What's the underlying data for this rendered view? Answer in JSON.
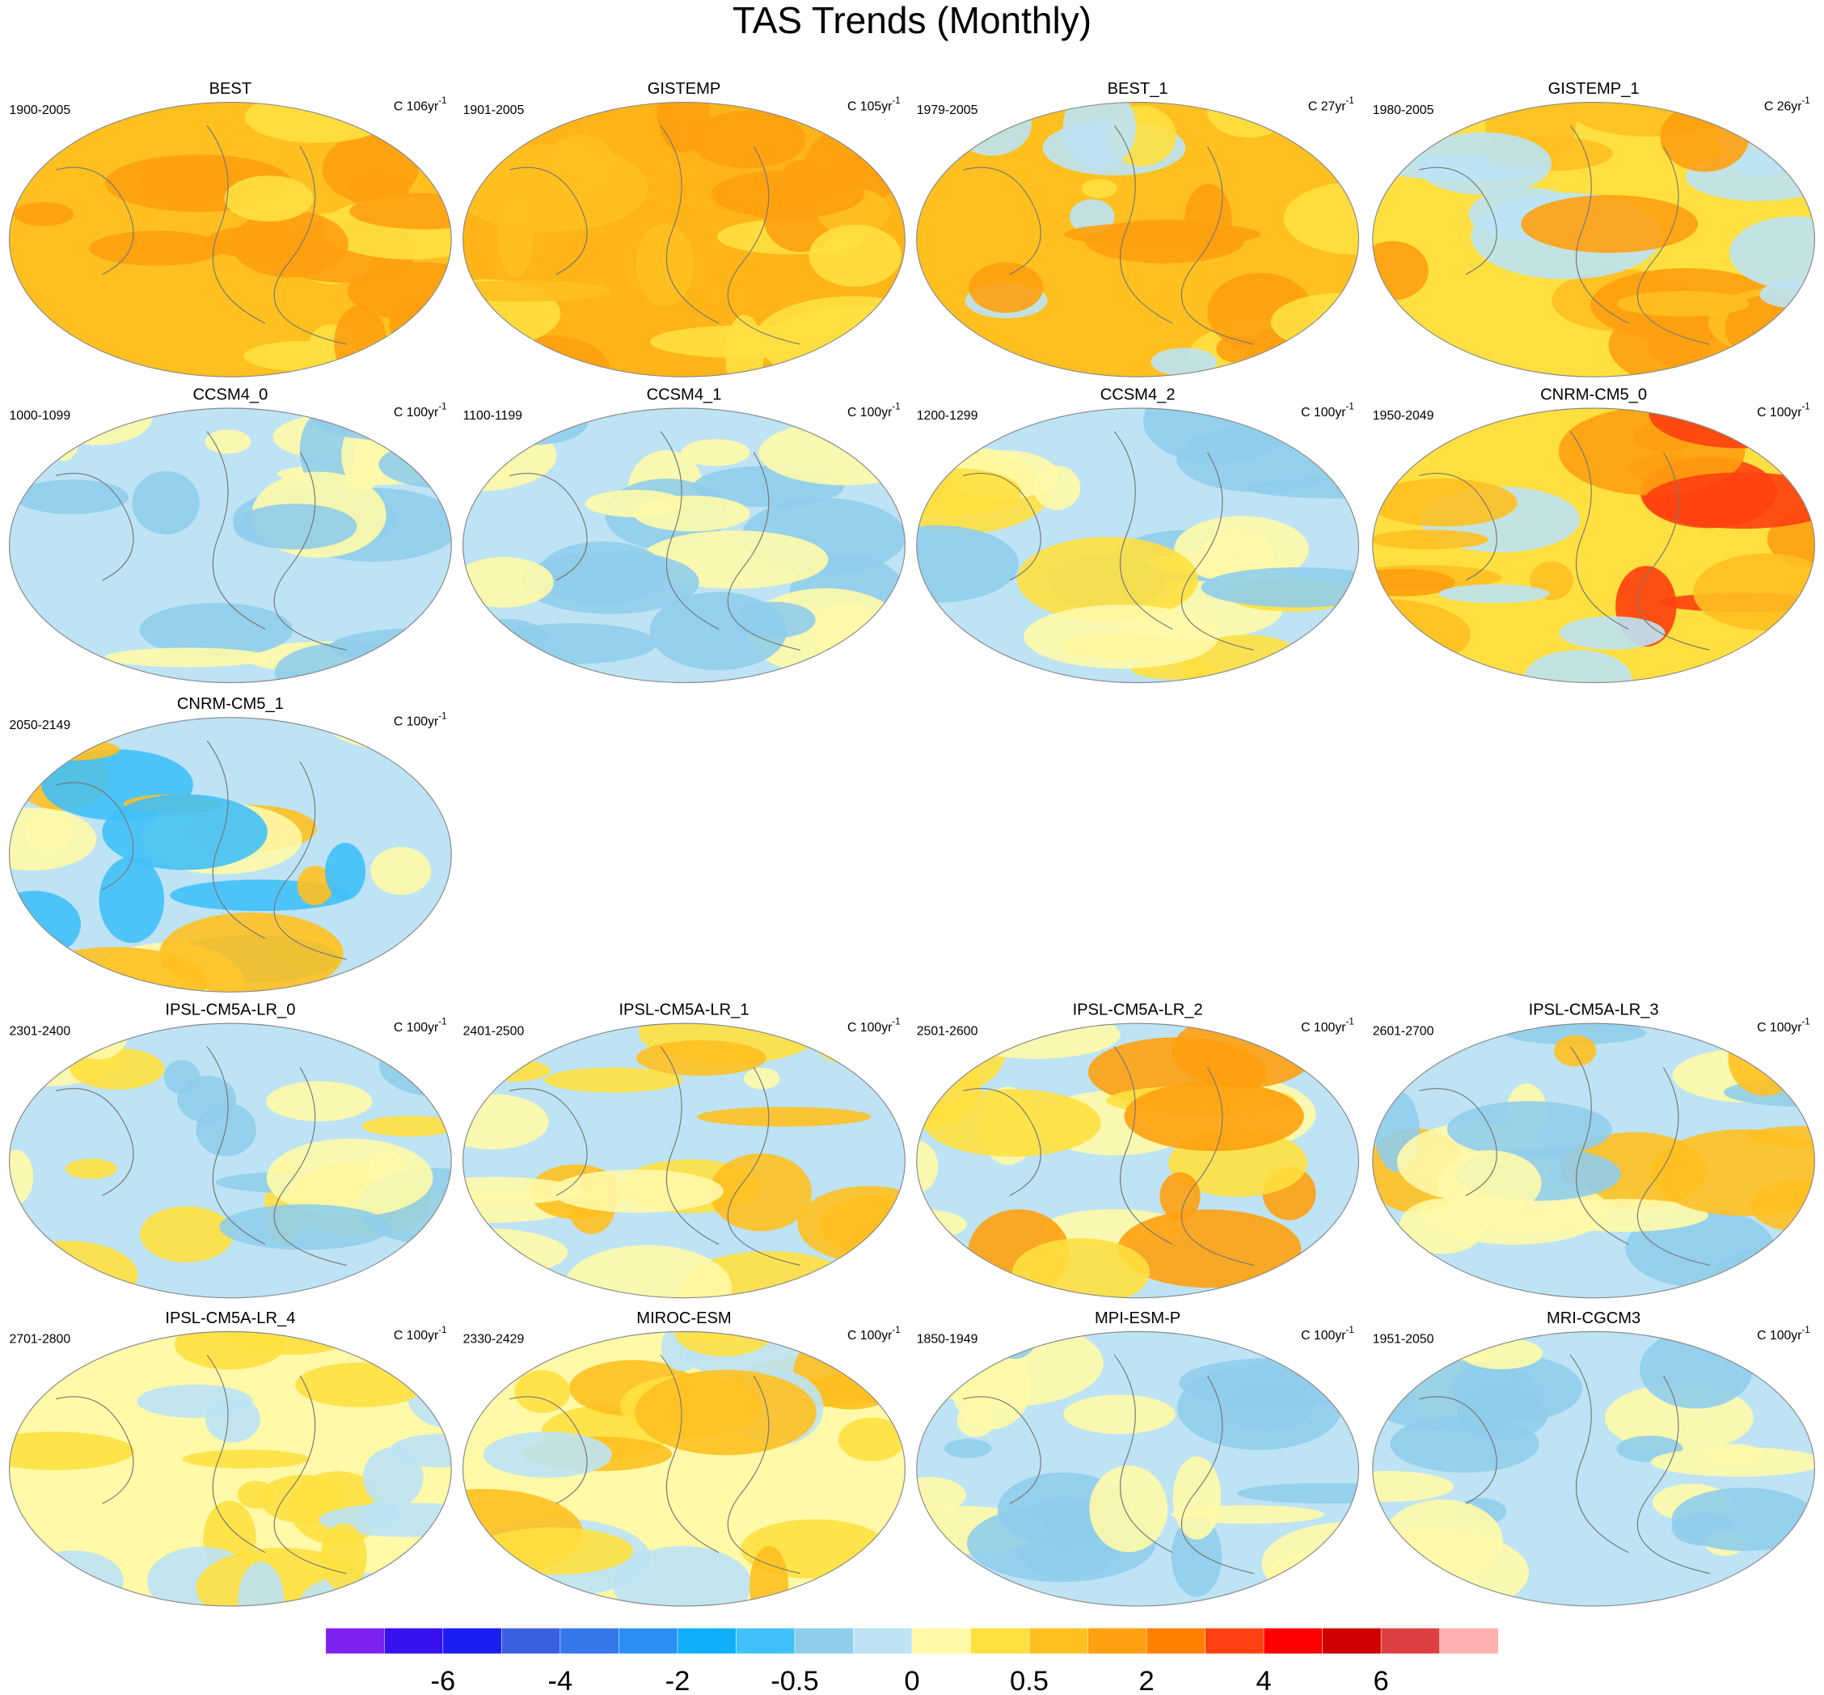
{
  "title": "TAS Trends (Monthly)",
  "panels": [
    {
      "title": "BEST",
      "period": "1900-2005",
      "units": "C 106yr",
      "units_exp": "-1",
      "colors": [
        "#ffc020",
        "#ffa010",
        "#ffe040",
        "#ffa010"
      ]
    },
    {
      "title": "GISTEMP",
      "period": "1901-2005",
      "units": "C 105yr",
      "units_exp": "-1",
      "colors": [
        "#ffb418",
        "#ffa010",
        "#ffc020",
        "#ffe040"
      ]
    },
    {
      "title": "BEST_1",
      "period": "1979-2005",
      "units": "C 27yr",
      "units_exp": "-1",
      "colors": [
        "#ffc020",
        "#ffe040",
        "#bde3f5",
        "#ffa010"
      ]
    },
    {
      "title": "GISTEMP_1",
      "period": "1980-2005",
      "units": "C 26yr",
      "units_exp": "-1",
      "colors": [
        "#ffe040",
        "#bde3f5",
        "#ffc020",
        "#ffa010"
      ]
    },
    {
      "title": "CCSM4_0",
      "period": "1000-1099",
      "units": "C 100yr",
      "units_exp": "-1",
      "colors": [
        "#bde3f5",
        "#fff9a8",
        "#90cdeb"
      ]
    },
    {
      "title": "CCSM4_1",
      "period": "1100-1199",
      "units": "C 100yr",
      "units_exp": "-1",
      "colors": [
        "#bde3f5",
        "#fff9a8",
        "#90cdeb"
      ]
    },
    {
      "title": "CCSM4_2",
      "period": "1200-1299",
      "units": "C 100yr",
      "units_exp": "-1",
      "colors": [
        "#bde3f5",
        "#fff9a8",
        "#90cdeb",
        "#ffe040"
      ]
    },
    {
      "title": "CNRM-CM5_0",
      "period": "1950-2049",
      "units": "C 100yr",
      "units_exp": "-1",
      "colors": [
        "#ffe040",
        "#ffc020",
        "#bde3f5",
        "#ffa010",
        "#ff4010"
      ]
    },
    {
      "title": "CNRM-CM5_1",
      "period": "2050-2149",
      "units": "C 100yr",
      "units_exp": "-1",
      "colors": [
        "#bde3f5",
        "#fff9a8",
        "#ffc020",
        "#40c0f8"
      ]
    },
    {
      "title": "IPSL-CM5A-LR_0",
      "period": "2301-2400",
      "units": "C 100yr",
      "units_exp": "-1",
      "colors": [
        "#bde3f5",
        "#fff9a8",
        "#90cdeb",
        "#ffe040"
      ]
    },
    {
      "title": "IPSL-CM5A-LR_1",
      "period": "2401-2500",
      "units": "C 100yr",
      "units_exp": "-1",
      "colors": [
        "#bde3f5",
        "#fff9a8",
        "#ffe040",
        "#ffc020"
      ]
    },
    {
      "title": "IPSL-CM5A-LR_2",
      "period": "2501-2600",
      "units": "C 100yr",
      "units_exp": "-1",
      "colors": [
        "#bde3f5",
        "#fff9a8",
        "#ffe040",
        "#ffa010"
      ]
    },
    {
      "title": "IPSL-CM5A-LR_3",
      "period": "2601-2700",
      "units": "C 100yr",
      "units_exp": "-1",
      "colors": [
        "#bde3f5",
        "#fff9a8",
        "#90cdeb",
        "#ffc020"
      ]
    },
    {
      "title": "IPSL-CM5A-LR_4",
      "period": "2701-2800",
      "units": "C 100yr",
      "units_exp": "-1",
      "colors": [
        "#fff9a8",
        "#bde3f5",
        "#ffe040"
      ]
    },
    {
      "title": "MIROC-ESM",
      "period": "2330-2429",
      "units": "C 100yr",
      "units_exp": "-1",
      "colors": [
        "#fff9a8",
        "#ffe040",
        "#ffc020",
        "#bde3f5"
      ]
    },
    {
      "title": "MPI-ESM-P",
      "period": "1850-1949",
      "units": "C 100yr",
      "units_exp": "-1",
      "colors": [
        "#bde3f5",
        "#fff9a8",
        "#90cdeb"
      ]
    },
    {
      "title": "MRI-CGCM3",
      "period": "1951-2050",
      "units": "C 100yr",
      "units_exp": "-1",
      "colors": [
        "#bde3f5",
        "#fff9a8",
        "#90cdeb"
      ]
    }
  ],
  "colorbar": {
    "colors": [
      "#7d22ee",
      "#3711ee",
      "#1a1ef0",
      "#3a5fe0",
      "#3576ea",
      "#2a8ef5",
      "#10b0f8",
      "#40c0f8",
      "#90cdeb",
      "#bde3f5",
      "#fff9a8",
      "#ffe040",
      "#ffc020",
      "#ffa010",
      "#ff8000",
      "#ff4010",
      "#ff0000",
      "#d00000",
      "#dd4040",
      "#ffb0b0"
    ],
    "labels": [
      "-6",
      "-4",
      "-2",
      "-0.5",
      "0",
      "0.5",
      "2",
      "4",
      "6"
    ]
  }
}
